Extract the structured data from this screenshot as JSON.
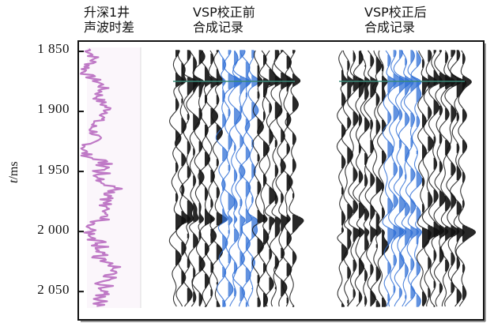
{
  "titles": {
    "log": [
      "升深1井",
      "声波时差"
    ],
    "before": [
      "VSP校正前",
      "合成记录"
    ],
    "after": [
      "VSP校正后",
      "合成记录"
    ]
  },
  "axis": {
    "label_var": "t",
    "label_unit": "/ms",
    "ticks": [
      "1 850",
      "1 900",
      "1 950",
      "2 000",
      "2 050"
    ],
    "tick_values": [
      1850,
      1900,
      1950,
      2000,
      2050
    ],
    "range": [
      1848,
      2065
    ]
  },
  "colors": {
    "log_curve": "#b86bc0",
    "trace_black": "#111111",
    "trace_blue": "#2f6fd6",
    "marker_line": "#3a8a7a"
  }
}
